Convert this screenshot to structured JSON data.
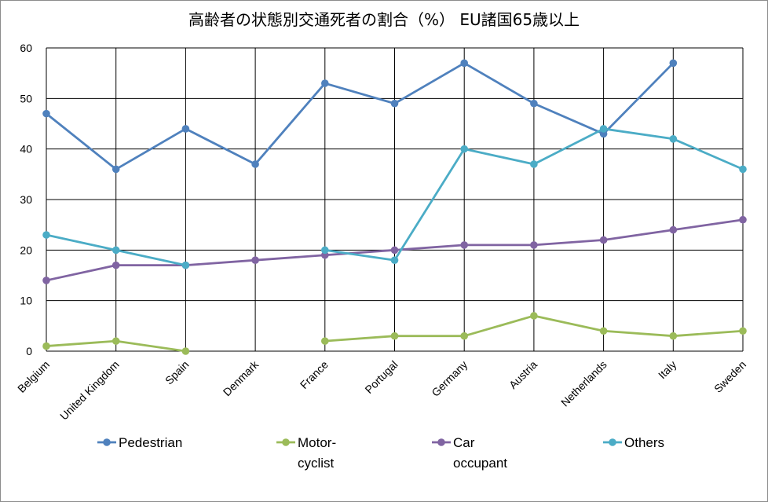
{
  "chart_data": {
    "type": "line",
    "title": "高齢者の状態別交通死者の割合（%） EU諸国65歳以上",
    "xlabel": "",
    "ylabel": "",
    "ylim": [
      0,
      60
    ],
    "yticks": [
      0,
      10,
      20,
      30,
      40,
      50,
      60
    ],
    "grid": true,
    "legend_position": "bottom",
    "categories": [
      "Belgium",
      "United Kingdom",
      "Spain",
      "Denmark",
      "France",
      "Portugal",
      "Germany",
      "Austria",
      "Netherlands",
      "Italy",
      "Sweden"
    ],
    "series": [
      {
        "name": "Pedestrian",
        "legend_lines": [
          "Pedestrian"
        ],
        "color": "#4f81bd",
        "values": [
          47,
          36,
          44,
          37,
          53,
          49,
          57,
          49,
          43,
          57,
          null
        ]
      },
      {
        "name": "Motor-cyclist",
        "legend_lines": [
          "Motor-",
          "cyclist"
        ],
        "color": "#9bbb59",
        "values": [
          1,
          2,
          0,
          null,
          2,
          3,
          3,
          7,
          4,
          3,
          4
        ]
      },
      {
        "name": "Car occupant",
        "legend_lines": [
          "Car",
          "occupant"
        ],
        "color": "#8064a2",
        "values": [
          14,
          17,
          17,
          18,
          19,
          20,
          21,
          21,
          22,
          24,
          26
        ]
      },
      {
        "name": "Others",
        "legend_lines": [
          "Others"
        ],
        "color": "#4bacc6",
        "values": [
          23,
          20,
          17,
          null,
          20,
          18,
          40,
          37,
          44,
          42,
          36
        ]
      }
    ]
  }
}
